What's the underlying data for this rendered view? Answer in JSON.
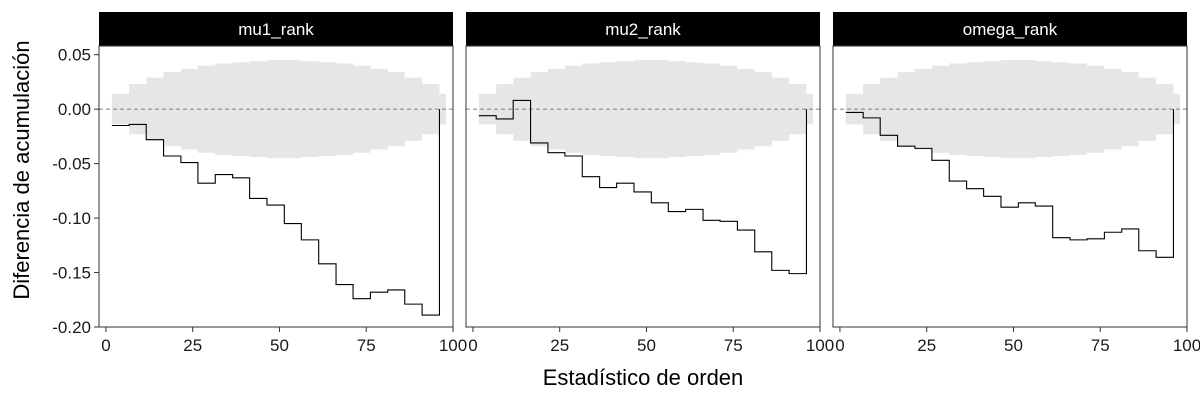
{
  "chart_data": {
    "type": "line",
    "xlabel": "Estadístico de orden",
    "ylabel": "Diferencia de acumulación",
    "xlim": [
      -2,
      100
    ],
    "ylim": [
      -0.2,
      0.058
    ],
    "x_ticks": [
      0,
      25,
      50,
      75,
      100
    ],
    "y_ticks": [
      -0.2,
      -0.15,
      -0.1,
      -0.05,
      0.0,
      0.05
    ],
    "y_tick_labels": [
      "-0.20",
      "-0.15",
      "-0.10",
      "-0.05",
      "0.00",
      "0.05"
    ],
    "reference_line": 0,
    "grid": false,
    "colors": {
      "strip_background": "#000000",
      "strip_text": "#ffffff",
      "band_fill": "#e6e6e6",
      "line": "#000000",
      "reference_line": "#7f7f7f"
    },
    "band": {
      "x": [
        1.7,
        6.7,
        11.6,
        16.6,
        21.6,
        26.5,
        31.5,
        36.5,
        41.4,
        46.4,
        51.4,
        56.3,
        61.3,
        66.3,
        71.2,
        76.2,
        81.2,
        86.1,
        91.1,
        96.1
      ],
      "upper": [
        0.014,
        0.023,
        0.029,
        0.034,
        0.037,
        0.04,
        0.042,
        0.043,
        0.044,
        0.045,
        0.045,
        0.044,
        0.043,
        0.042,
        0.04,
        0.037,
        0.034,
        0.029,
        0.023,
        0.014
      ],
      "lower": [
        -0.014,
        -0.023,
        -0.029,
        -0.034,
        -0.037,
        -0.04,
        -0.042,
        -0.043,
        -0.044,
        -0.045,
        -0.045,
        -0.044,
        -0.043,
        -0.042,
        -0.04,
        -0.037,
        -0.034,
        -0.029,
        -0.023,
        -0.014
      ]
    },
    "panels": [
      {
        "name": "mu1_rank",
        "x": [
          1.7,
          6.7,
          11.6,
          16.6,
          21.6,
          26.5,
          31.5,
          36.5,
          41.4,
          46.4,
          51.4,
          56.3,
          61.3,
          66.3,
          71.2,
          76.2,
          81.2,
          86.1,
          91.1,
          96.1
        ],
        "y": [
          -0.015,
          -0.014,
          -0.028,
          -0.043,
          -0.049,
          -0.068,
          -0.06,
          -0.063,
          -0.082,
          -0.088,
          -0.105,
          -0.12,
          -0.142,
          -0.161,
          -0.174,
          -0.168,
          -0.166,
          -0.179,
          -0.189,
          0.0
        ]
      },
      {
        "name": "mu2_rank",
        "x": [
          1.7,
          6.7,
          11.6,
          16.6,
          21.6,
          26.5,
          31.5,
          36.5,
          41.4,
          46.4,
          51.4,
          56.3,
          61.3,
          66.3,
          71.2,
          76.2,
          81.2,
          86.1,
          91.1,
          96.1
        ],
        "y": [
          -0.006,
          -0.009,
          0.008,
          -0.031,
          -0.04,
          -0.043,
          -0.062,
          -0.072,
          -0.068,
          -0.076,
          -0.086,
          -0.094,
          -0.092,
          -0.102,
          -0.103,
          -0.111,
          -0.131,
          -0.148,
          -0.151,
          0.0
        ]
      },
      {
        "name": "omega_rank",
        "x": [
          1.7,
          6.7,
          11.6,
          16.6,
          21.6,
          26.5,
          31.5,
          36.5,
          41.4,
          46.4,
          51.4,
          56.3,
          61.3,
          66.3,
          71.2,
          76.2,
          81.2,
          86.1,
          91.1,
          96.1
        ],
        "y": [
          -0.003,
          -0.008,
          -0.024,
          -0.034,
          -0.036,
          -0.047,
          -0.066,
          -0.073,
          -0.08,
          -0.09,
          -0.086,
          -0.089,
          -0.118,
          -0.12,
          -0.119,
          -0.113,
          -0.11,
          -0.13,
          -0.136,
          0.0
        ]
      }
    ]
  }
}
